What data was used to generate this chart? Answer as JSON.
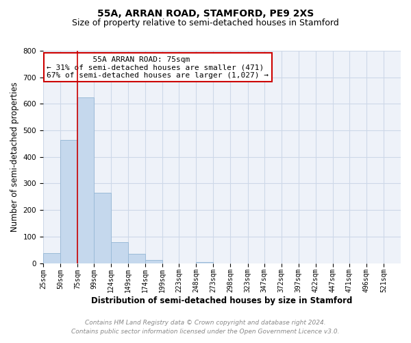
{
  "title": "55A, ARRAN ROAD, STAMFORD, PE9 2XS",
  "subtitle": "Size of property relative to semi-detached houses in Stamford",
  "xlabel": "Distribution of semi-detached houses by size in Stamford",
  "ylabel": "Number of semi-detached properties",
  "footer_line1": "Contains HM Land Registry data © Crown copyright and database right 2024.",
  "footer_line2": "Contains public sector information licensed under the Open Government Licence v3.0.",
  "annotation_title": "55A ARRAN ROAD: 75sqm",
  "annotation_line1": "← 31% of semi-detached houses are smaller (471)",
  "annotation_line2": "67% of semi-detached houses are larger (1,027) →",
  "property_size_sqm": 75,
  "bar_left_edges": [
    25,
    50,
    75,
    99,
    124,
    149,
    174,
    199,
    223,
    248,
    273,
    298,
    323,
    347,
    372,
    397,
    422,
    447,
    471,
    496
  ],
  "bar_heights": [
    38,
    465,
    625,
    265,
    80,
    35,
    13,
    0,
    0,
    5,
    0,
    0,
    0,
    0,
    0,
    0,
    0,
    0,
    0,
    0
  ],
  "bar_widths": [
    25,
    25,
    24,
    25,
    25,
    25,
    25,
    24,
    25,
    25,
    25,
    25,
    24,
    25,
    25,
    25,
    25,
    24,
    25,
    25
  ],
  "tick_labels": [
    "25sqm",
    "50sqm",
    "75sqm",
    "99sqm",
    "124sqm",
    "149sqm",
    "174sqm",
    "199sqm",
    "223sqm",
    "248sqm",
    "273sqm",
    "298sqm",
    "323sqm",
    "347sqm",
    "372sqm",
    "397sqm",
    "422sqm",
    "447sqm",
    "471sqm",
    "496sqm",
    "521sqm"
  ],
  "tick_positions": [
    25,
    50,
    75,
    99,
    124,
    149,
    174,
    199,
    223,
    248,
    273,
    298,
    323,
    347,
    372,
    397,
    422,
    447,
    471,
    496,
    521
  ],
  "ylim": [
    0,
    800
  ],
  "xlim": [
    25,
    546
  ],
  "bar_color": "#c5d8ed",
  "bar_edge_color": "#9bbbd8",
  "grid_color": "#cdd8e8",
  "vline_color": "#cc0000",
  "annotation_box_color": "#cc0000",
  "background_color": "#eef2f9",
  "title_fontsize": 10,
  "subtitle_fontsize": 9,
  "axis_label_fontsize": 8.5,
  "tick_fontsize": 7,
  "annotation_fontsize": 8,
  "footer_fontsize": 6.5
}
